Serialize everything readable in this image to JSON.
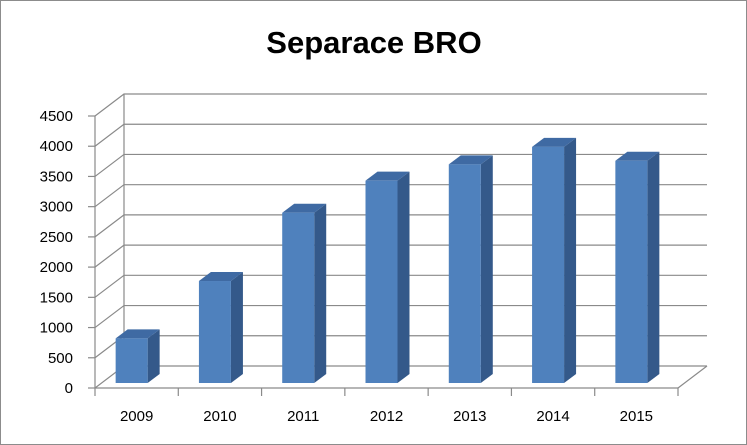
{
  "chart_data": {
    "type": "bar",
    "title": "Separace BRO",
    "categories": [
      "2009",
      "2010",
      "2011",
      "2012",
      "2013",
      "2014",
      "2015"
    ],
    "values": [
      820,
      1770,
      2900,
      3430,
      3700,
      3990,
      3760
    ],
    "ylim": [
      0,
      4500
    ],
    "yticks": [
      0,
      500,
      1000,
      1500,
      2000,
      2500,
      3000,
      3500,
      4000,
      4500
    ],
    "ytick_labels": [
      "0",
      "500",
      "1000",
      "1500",
      "2000",
      "2500",
      "3000",
      "3500",
      "4000",
      "4500"
    ],
    "xlabel": "",
    "ylabel": "",
    "grid": true,
    "legend": "none",
    "style": "3d-column",
    "colors": {
      "bar_front": "#4f81bd",
      "bar_side": "#34598a",
      "bar_top": "#3f6aa3",
      "grid": "#8a8a8a"
    }
  }
}
